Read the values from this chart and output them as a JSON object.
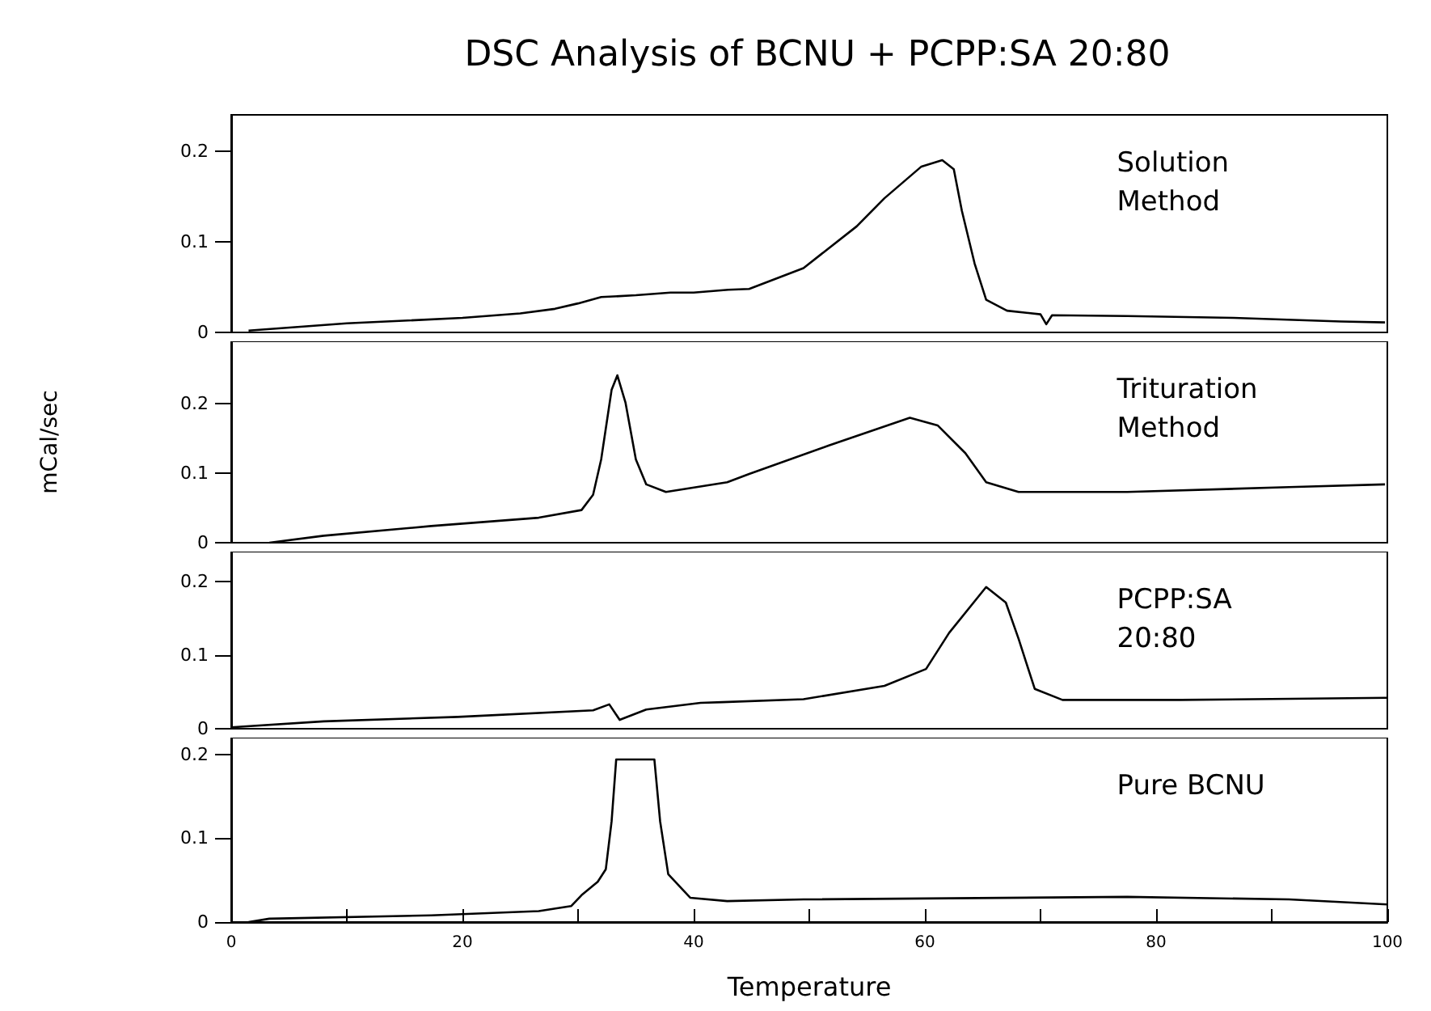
{
  "chart_data": [
    {
      "type": "line",
      "title": "DSC Analysis of BCNU + PCPP:SA 20:80",
      "xlim": [
        0,
        100
      ],
      "xticks": [
        0,
        20,
        40,
        60,
        80,
        100
      ],
      "ylim": [
        0,
        0.24
      ],
      "yticks": [
        0,
        0.1,
        0.2
      ],
      "tick_labels": "y",
      "marker": "none",
      "series": [
        {
          "name": "Solution Method",
          "color": "#000000",
          "x": [
            1.5,
            10,
            20,
            25,
            28,
            30,
            32,
            35,
            38,
            40,
            43,
            44.8,
            49.5,
            54.1,
            56.5,
            59.7,
            61.5,
            62.5,
            63.2,
            64.3,
            65.3,
            67.1,
            70,
            70.5,
            71,
            77.5,
            86.7,
            96,
            99.8
          ],
          "values": [
            0.002,
            0.01,
            0.016,
            0.021,
            0.026,
            0.032,
            0.039,
            0.041,
            0.044,
            0.044,
            0.047,
            0.048,
            0.071,
            0.117,
            0.148,
            0.183,
            0.19,
            0.18,
            0.134,
            0.076,
            0.036,
            0.024,
            0.02,
            0.009,
            0.019,
            0.018,
            0.016,
            0.012,
            0.011
          ]
        }
      ]
    },
    {
      "type": "line",
      "ylabel": "mCal/sec",
      "xlim": [
        0,
        100
      ],
      "xticks": [
        0,
        20,
        40,
        60,
        80,
        100
      ],
      "ylim": [
        0,
        0.29
      ],
      "yticks": [
        0,
        0.1,
        0.2
      ],
      "tick_labels": "y",
      "marker": "none",
      "series": [
        {
          "name": "Trituration Method",
          "color": "#000000",
          "x": [
            3.3,
            8,
            17.3,
            26.6,
            30.3,
            31.3,
            32,
            32.9,
            33.4,
            34.1,
            35,
            35.9,
            37.6,
            42.9,
            44.8,
            51.7,
            58.7,
            61.1,
            63.5,
            65.3,
            68.1,
            77.5,
            91.5,
            99.8
          ],
          "values": [
            0,
            0.01,
            0.024,
            0.036,
            0.047,
            0.069,
            0.12,
            0.22,
            0.241,
            0.202,
            0.12,
            0.084,
            0.073,
            0.087,
            0.099,
            0.14,
            0.18,
            0.169,
            0.129,
            0.087,
            0.073,
            0.073,
            0.08,
            0.084
          ]
        }
      ]
    },
    {
      "type": "line",
      "xlim": [
        0,
        100
      ],
      "xticks": [
        0,
        20,
        40,
        60,
        80,
        100
      ],
      "ylim": [
        0,
        0.24
      ],
      "yticks": [
        0,
        0.1,
        0.2
      ],
      "tick_labels": "y",
      "marker": "none",
      "series": [
        {
          "name": "PCPP:SA 20:80",
          "color": "#000000",
          "x": [
            0,
            8,
            19.6,
            31.3,
            32.7,
            33.6,
            35.9,
            40.6,
            42.5,
            49.5,
            56.5,
            60.1,
            62.1,
            65.3,
            67,
            68.1,
            69.5,
            71.9,
            82.1,
            100
          ],
          "values": [
            0.002,
            0.01,
            0.016,
            0.025,
            0.033,
            0.012,
            0.026,
            0.035,
            0.036,
            0.04,
            0.058,
            0.081,
            0.13,
            0.192,
            0.171,
            0.122,
            0.054,
            0.039,
            0.039,
            0.042
          ]
        }
      ]
    },
    {
      "type": "line",
      "xlabel": "Temperature",
      "xlim": [
        0,
        100
      ],
      "xticks": [
        0,
        {
          "value": 10,
          "label": null
        },
        20,
        {
          "value": 30,
          "label": null
        },
        40,
        {
          "value": 50,
          "label": null
        },
        60,
        {
          "value": 70,
          "label": null
        },
        80,
        {
          "value": 90,
          "label": null
        },
        100
      ],
      "ylim": [
        0,
        0.22
      ],
      "yticks": [
        0,
        0.1,
        0.2
      ],
      "marker": "none",
      "series": [
        {
          "name": "Pure BCNU",
          "color": "#000000",
          "x": [
            1.5,
            3.3,
            17.3,
            26.6,
            29.4,
            30.3,
            31.7,
            32.4,
            32.9,
            33.3,
            36.6,
            37.1,
            37.8,
            39.7,
            42.9,
            49.5,
            77.5,
            91.5,
            100
          ],
          "values": [
            0,
            0.004,
            0.008,
            0.013,
            0.019,
            0.032,
            0.048,
            0.063,
            0.12,
            0.194,
            0.194,
            0.12,
            0.057,
            0.029,
            0.025,
            0.027,
            0.03,
            0.027,
            0.021
          ]
        }
      ]
    }
  ]
}
